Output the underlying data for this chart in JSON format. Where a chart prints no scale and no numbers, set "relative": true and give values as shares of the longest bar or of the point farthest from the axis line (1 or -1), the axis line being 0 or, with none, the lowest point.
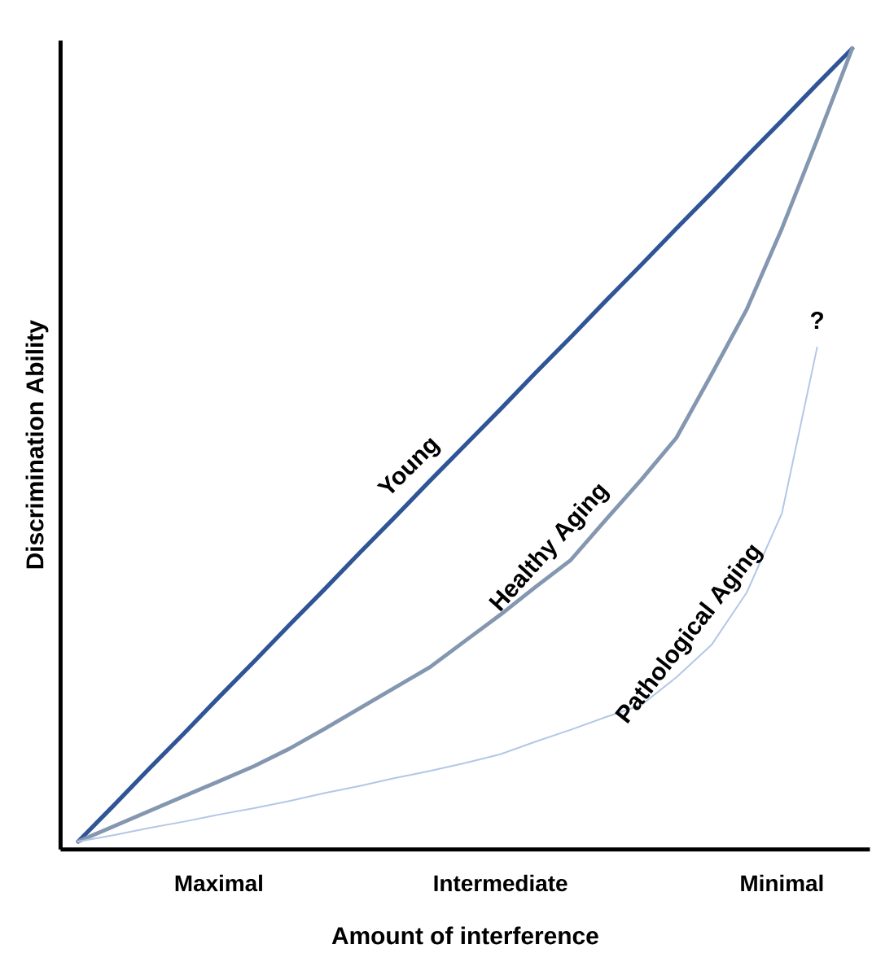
{
  "chart_data": {
    "type": "line",
    "relative": true,
    "xlabel": "Amount of interference",
    "ylabel": "Discrimination Ability",
    "categories": [
      null,
      null,
      null,
      null,
      "Maximal",
      null,
      null,
      null,
      null,
      null,
      null,
      null,
      "Intermediate",
      null,
      null,
      null,
      null,
      null,
      null,
      null,
      "Minimal",
      null,
      null
    ],
    "series": [
      {
        "name": "Young",
        "color": "#2f5597",
        "values": [
          0,
          0.045,
          0.091,
          0.136,
          0.182,
          0.227,
          0.273,
          0.318,
          0.364,
          0.409,
          0.455,
          0.5,
          0.545,
          0.591,
          0.636,
          0.682,
          0.727,
          0.773,
          0.818,
          0.864,
          0.909,
          0.955,
          1
        ]
      },
      {
        "name": "Healthy Aging",
        "color": "#8497b0",
        "values": [
          0,
          0.019,
          0.038,
          0.057,
          0.076,
          0.095,
          0.117,
          0.142,
          0.168,
          0.194,
          0.22,
          0.253,
          0.286,
          0.321,
          0.355,
          0.406,
          0.456,
          0.509,
          0.589,
          0.671,
          0.773,
          0.885,
          1
        ]
      },
      {
        "name": "Pathological Aging",
        "color": "#b4c7e7",
        "values": [
          0,
          0.008,
          0.017,
          0.025,
          0.034,
          0.042,
          0.051,
          0.061,
          0.07,
          0.08,
          0.089,
          0.099,
          0.11,
          0.126,
          0.141,
          0.157,
          0.172,
          0.207,
          0.248,
          0.314,
          0.414,
          0.623,
          null
        ]
      }
    ],
    "annotations": [
      "?"
    ],
    "legend": false,
    "marker": "none",
    "line_style": "solid"
  }
}
